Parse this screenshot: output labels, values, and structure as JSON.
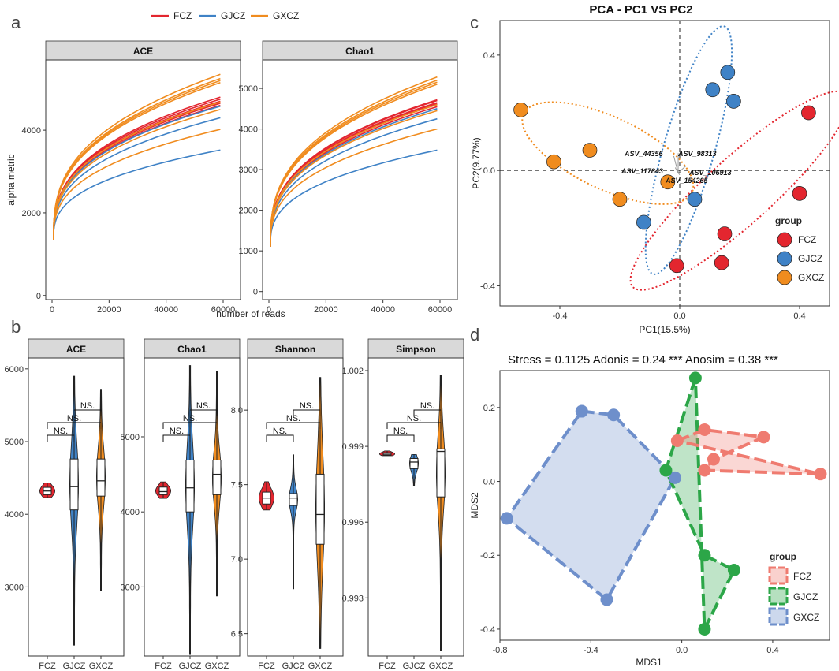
{
  "colors": {
    "FCZ": "#e3262f",
    "GJCZ": "#3f82c6",
    "GXCZ": "#f08c1f",
    "nFCZ": "#ef7b70",
    "nGJCZ": "#2ca648",
    "nGXCZ": "#6e8fcb"
  },
  "panel_labels": {
    "a": "a",
    "b": "b",
    "c": "c",
    "d": "d"
  },
  "chart_data": [
    {
      "id": "a",
      "type": "line",
      "legend": [
        "FCZ",
        "GJCZ",
        "GXCZ"
      ],
      "xlabel": "number of reads",
      "ylabel": "alpha metric",
      "xlim": [
        0,
        60000
      ],
      "xticks": [
        0,
        20000,
        40000,
        60000
      ],
      "facets": [
        {
          "name": "ACE",
          "ylim": [
            -100,
            5700
          ],
          "yticks": [
            0,
            2000,
            4000
          ],
          "series": [
            {
              "group": "FCZ",
              "final": [
                4800,
                4750,
                4700,
                4680,
                4650,
                4600
              ]
            },
            {
              "group": "GJCZ",
              "final": [
                4580,
                4300,
                3520
              ]
            },
            {
              "group": "GXCZ",
              "final": [
                5350,
                5250,
                5200,
                5150,
                4680,
                4500,
                4020
              ]
            }
          ]
        },
        {
          "name": "Chao1",
          "ylim": [
            -200,
            5700
          ],
          "yticks": [
            0,
            1000,
            2000,
            3000,
            4000,
            5000
          ],
          "series": [
            {
              "group": "FCZ",
              "final": [
                4720,
                4700,
                4650,
                4620,
                4600,
                4550
              ]
            },
            {
              "group": "GJCZ",
              "final": [
                4500,
                4250,
                3480
              ]
            },
            {
              "group": "GXCZ",
              "final": [
                5280,
                5200,
                5150,
                5100,
                4600,
                4450,
                4000
              ]
            }
          ]
        }
      ]
    },
    {
      "id": "b",
      "type": "violin",
      "categories": [
        "FCZ",
        "GJCZ",
        "GXCZ"
      ],
      "sig_label": "NS.",
      "facets": [
        {
          "name": "ACE",
          "ylim": [
            2050,
            6150
          ],
          "yticks": [
            3000,
            4000,
            5000,
            6000
          ],
          "groups": [
            {
              "min": 4230,
              "q1": 4270,
              "median": 4320,
              "q3": 4370,
              "max": 4430
            },
            {
              "min": 2200,
              "q1": 4060,
              "median": 4380,
              "q3": 4760,
              "max": 5900
            },
            {
              "min": 2950,
              "q1": 4250,
              "median": 4460,
              "q3": 4760,
              "max": 5720
            }
          ]
        },
        {
          "name": "Chao1",
          "ylim": [
            2080,
            6050
          ],
          "yticks": [
            3000,
            4000,
            5000
          ],
          "groups": [
            {
              "min": 4180,
              "q1": 4230,
              "median": 4270,
              "q3": 4330,
              "max": 4400
            },
            {
              "min": 2100,
              "q1": 4000,
              "median": 4320,
              "q3": 4690,
              "max": 5950
            },
            {
              "min": 2880,
              "q1": 4230,
              "median": 4500,
              "q3": 4690,
              "max": 5870
            }
          ]
        },
        {
          "name": "Shannon",
          "ylim": [
            6.35,
            8.35
          ],
          "yticks": [
            6.5,
            7.0,
            7.5,
            8.0
          ],
          "groups": [
            {
              "min": 7.33,
              "q1": 7.37,
              "median": 7.41,
              "q3": 7.45,
              "max": 7.52
            },
            {
              "min": 6.8,
              "q1": 7.36,
              "median": 7.41,
              "q3": 7.44,
              "max": 7.7
            },
            {
              "min": 6.4,
              "q1": 7.1,
              "median": 7.3,
              "q3": 7.57,
              "max": 8.22
            }
          ]
        },
        {
          "name": "Simpson",
          "ylim": [
            0.9907,
            1.0025
          ],
          "yticks": [
            0.993,
            0.996,
            0.999,
            1.002
          ],
          "groups": [
            {
              "min": 0.99863,
              "q1": 0.99865,
              "median": 0.99869,
              "q3": 0.99875,
              "max": 0.99882
            },
            {
              "min": 0.99745,
              "q1": 0.99812,
              "median": 0.99838,
              "q3": 0.99852,
              "max": 0.99868
            },
            {
              "min": 0.9909,
              "q1": 0.997,
              "median": 0.9988,
              "q3": 0.9989,
              "max": 1.0018
            }
          ]
        }
      ]
    },
    {
      "id": "c",
      "type": "scatter",
      "title": "PCA - PC1 VS PC2",
      "xlabel": "PC1(15.5%)",
      "ylabel": "PC2(9.77%)",
      "xlim": [
        -0.6,
        0.5
      ],
      "ylim": [
        -0.47,
        0.52
      ],
      "xticks": [
        -0.4,
        0.0,
        0.4
      ],
      "yticks": [
        -0.4,
        0.0,
        0.4
      ],
      "legend_title": "group",
      "legend": [
        "FCZ",
        "GJCZ",
        "GXCZ"
      ],
      "points": [
        {
          "group": "FCZ",
          "x": 0.43,
          "y": 0.2
        },
        {
          "group": "FCZ",
          "x": 0.4,
          "y": -0.08
        },
        {
          "group": "FCZ",
          "x": 0.15,
          "y": -0.22
        },
        {
          "group": "FCZ",
          "x": 0.14,
          "y": -0.32
        },
        {
          "group": "FCZ",
          "x": -0.01,
          "y": -0.33
        },
        {
          "group": "GJCZ",
          "x": 0.16,
          "y": 0.34
        },
        {
          "group": "GJCZ",
          "x": 0.11,
          "y": 0.28
        },
        {
          "group": "GJCZ",
          "x": 0.18,
          "y": 0.24
        },
        {
          "group": "GJCZ",
          "x": 0.05,
          "y": -0.1
        },
        {
          "group": "GJCZ",
          "x": -0.12,
          "y": -0.18
        },
        {
          "group": "GXCZ",
          "x": -0.53,
          "y": 0.21
        },
        {
          "group": "GXCZ",
          "x": -0.3,
          "y": 0.07
        },
        {
          "group": "GXCZ",
          "x": -0.42,
          "y": 0.03
        },
        {
          "group": "GXCZ",
          "x": -0.2,
          "y": -0.1
        },
        {
          "group": "GXCZ",
          "x": -0.04,
          "y": -0.04
        }
      ],
      "ellipses": [
        {
          "group": "FCZ",
          "cx": 0.2,
          "cy": -0.07,
          "rx": 0.48,
          "ry": 0.11,
          "angle": 42
        },
        {
          "group": "GJCZ",
          "cx": 0.03,
          "cy": 0.07,
          "rx": 0.43,
          "ry": 0.085,
          "angle": 74
        },
        {
          "group": "GXCZ",
          "cx": -0.24,
          "cy": 0.06,
          "rx": 0.31,
          "ry": 0.12,
          "angle": -25
        }
      ],
      "loadings": [
        {
          "label": "ASV_44356",
          "x": -0.02,
          "y": 0.05
        },
        {
          "label": "ASV_98313",
          "x": -0.005,
          "y": 0.06
        },
        {
          "label": "ASV_117843",
          "x": -0.015,
          "y": 0.01
        },
        {
          "label": "ASV_106913",
          "x": 0.02,
          "y": 0.015
        },
        {
          "label": "ASV_154265",
          "x": 0.0,
          "y": -0.015
        }
      ]
    },
    {
      "id": "d",
      "type": "scatter",
      "subtitle": "Stress  = 0.1125 Adonis  = 0.24 *** Anosim  = 0.38 ***",
      "xlabel": "MDS1",
      "ylabel": "MDS2",
      "xlim": [
        -0.8,
        0.65
      ],
      "ylim": [
        -0.43,
        0.3
      ],
      "xticks": [
        -0.8,
        -0.4,
        0.0,
        0.4
      ],
      "xtick_labels": [
        "-0.8",
        "-0.4",
        "0.0",
        "0.4"
      ],
      "yticks": [
        -0.4,
        -0.2,
        0.0,
        0.2
      ],
      "legend_title": "group",
      "legend": [
        "FCZ",
        "GJCZ",
        "GXCZ"
      ],
      "groups": [
        {
          "name": "FCZ",
          "points": [
            [
              -0.02,
              0.11
            ],
            [
              0.1,
              0.14
            ],
            [
              0.36,
              0.12
            ],
            [
              0.14,
              0.06
            ],
            [
              0.1,
              0.03
            ],
            [
              0.61,
              0.02
            ]
          ]
        },
        {
          "name": "GJCZ",
          "points": [
            [
              0.06,
              0.28
            ],
            [
              -0.07,
              0.03
            ],
            [
              0.1,
              -0.2
            ],
            [
              0.23,
              -0.24
            ],
            [
              0.1,
              -0.4
            ]
          ]
        },
        {
          "name": "GXCZ",
          "points": [
            [
              -0.44,
              0.19
            ],
            [
              -0.3,
              0.18
            ],
            [
              -0.03,
              0.01
            ],
            [
              -0.33,
              -0.32
            ],
            [
              -0.77,
              -0.1
            ]
          ]
        }
      ]
    }
  ]
}
